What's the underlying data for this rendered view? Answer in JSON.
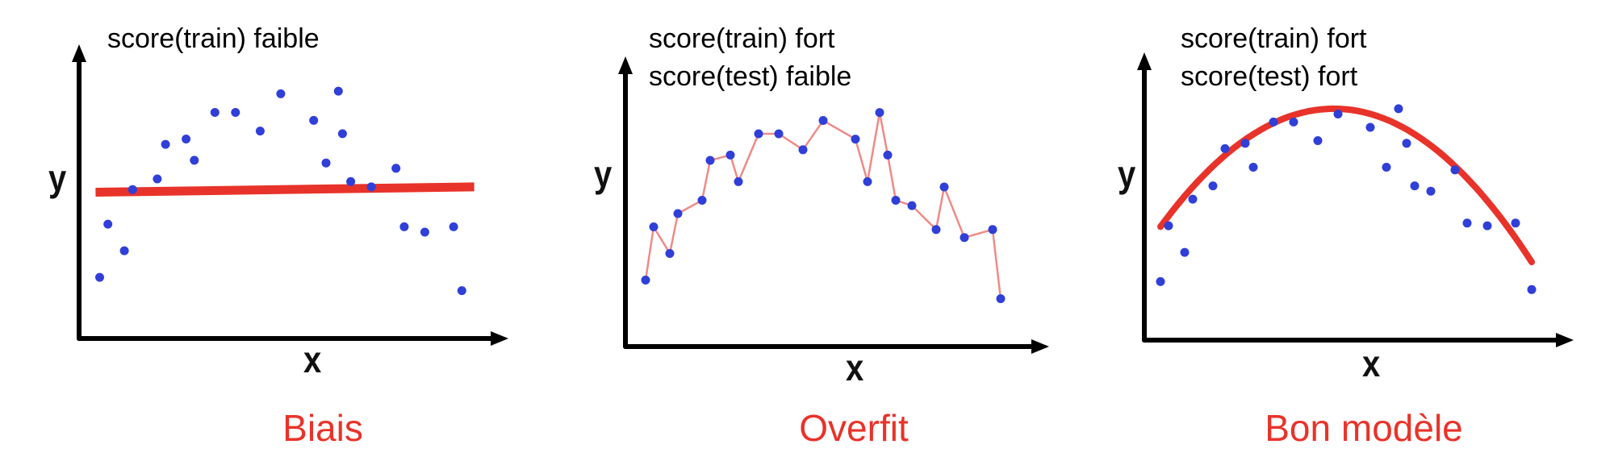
{
  "colors": {
    "points": "#2f3fd8",
    "fit": "#e8332a",
    "overfit_line": "#f08a86",
    "axis": "#000000",
    "verdict": "#e8332a"
  },
  "panels": [
    {
      "id": "biais",
      "scores": [
        "score(train) faible"
      ],
      "y_label": "y",
      "x_label": "x",
      "verdict": "Biais",
      "fit": "constant",
      "points": [
        [
          0.05,
          0.23
        ],
        [
          0.07,
          0.43
        ],
        [
          0.11,
          0.33
        ],
        [
          0.13,
          0.56
        ],
        [
          0.19,
          0.6
        ],
        [
          0.21,
          0.73
        ],
        [
          0.26,
          0.75
        ],
        [
          0.28,
          0.67
        ],
        [
          0.33,
          0.85
        ],
        [
          0.38,
          0.85
        ],
        [
          0.44,
          0.78
        ],
        [
          0.49,
          0.92
        ],
        [
          0.57,
          0.82
        ],
        [
          0.6,
          0.66
        ],
        [
          0.63,
          0.93
        ],
        [
          0.64,
          0.77
        ],
        [
          0.66,
          0.59
        ],
        [
          0.71,
          0.57
        ],
        [
          0.77,
          0.64
        ],
        [
          0.79,
          0.42
        ],
        [
          0.84,
          0.4
        ],
        [
          0.91,
          0.42
        ],
        [
          0.93,
          0.18
        ]
      ]
    },
    {
      "id": "overfit",
      "scores": [
        "score(train) fort",
        "score(test) faible"
      ],
      "y_label": "y",
      "x_label": "x",
      "verdict": "Overfit",
      "fit": "interpolate",
      "points": [
        [
          0.05,
          0.25
        ],
        [
          0.07,
          0.45
        ],
        [
          0.11,
          0.35
        ],
        [
          0.13,
          0.5
        ],
        [
          0.19,
          0.55
        ],
        [
          0.21,
          0.7
        ],
        [
          0.26,
          0.72
        ],
        [
          0.28,
          0.62
        ],
        [
          0.33,
          0.8
        ],
        [
          0.38,
          0.8
        ],
        [
          0.44,
          0.74
        ],
        [
          0.49,
          0.85
        ],
        [
          0.57,
          0.78
        ],
        [
          0.6,
          0.62
        ],
        [
          0.63,
          0.88
        ],
        [
          0.65,
          0.72
        ],
        [
          0.67,
          0.55
        ],
        [
          0.71,
          0.53
        ],
        [
          0.77,
          0.44
        ],
        [
          0.79,
          0.6
        ],
        [
          0.84,
          0.41
        ],
        [
          0.91,
          0.44
        ],
        [
          0.93,
          0.18
        ]
      ]
    },
    {
      "id": "bon-modele",
      "scores": [
        "score(train) fort",
        "score(test) fort"
      ],
      "y_label": "y",
      "x_label": "x",
      "verdict": "Bon modèle",
      "fit": "parabola",
      "points": [
        [
          0.04,
          0.22
        ],
        [
          0.06,
          0.43
        ],
        [
          0.1,
          0.33
        ],
        [
          0.12,
          0.53
        ],
        [
          0.17,
          0.58
        ],
        [
          0.2,
          0.72
        ],
        [
          0.25,
          0.74
        ],
        [
          0.27,
          0.65
        ],
        [
          0.32,
          0.82
        ],
        [
          0.37,
          0.82
        ],
        [
          0.43,
          0.75
        ],
        [
          0.48,
          0.85
        ],
        [
          0.56,
          0.8
        ],
        [
          0.6,
          0.65
        ],
        [
          0.63,
          0.87
        ],
        [
          0.65,
          0.74
        ],
        [
          0.67,
          0.58
        ],
        [
          0.71,
          0.56
        ],
        [
          0.77,
          0.64
        ],
        [
          0.8,
          0.44
        ],
        [
          0.85,
          0.43
        ],
        [
          0.92,
          0.44
        ],
        [
          0.96,
          0.19
        ]
      ]
    }
  ]
}
